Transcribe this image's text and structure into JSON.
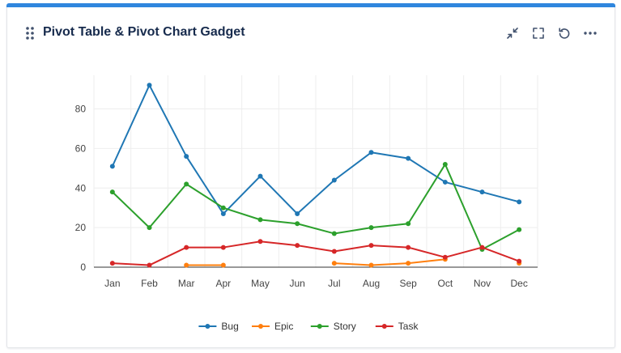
{
  "gadget": {
    "title": "Pivot Table & Pivot Chart Gadget",
    "actions": [
      {
        "name": "minimize-icon"
      },
      {
        "name": "expand-icon"
      },
      {
        "name": "refresh-icon"
      },
      {
        "name": "more-icon"
      }
    ]
  },
  "colors": {
    "accent": "#2f86de",
    "Bug": "#1f77b4",
    "Epic": "#ff7f0e",
    "Story": "#2ca02c",
    "Task": "#d62728"
  },
  "chart_data": {
    "type": "line",
    "title": "",
    "xlabel": "",
    "ylabel": "",
    "categories": [
      "Jan",
      "Feb",
      "Mar",
      "Apr",
      "May",
      "Jun",
      "Jul",
      "Aug",
      "Sep",
      "Oct",
      "Nov",
      "Dec"
    ],
    "ylim": [
      0,
      97
    ],
    "yticks": [
      0,
      20,
      40,
      60,
      80
    ],
    "grid": true,
    "legend": "bottom-center",
    "series": [
      {
        "name": "Bug",
        "values": [
          51,
          92,
          56,
          27,
          46,
          27,
          44,
          58,
          55,
          43,
          38,
          33
        ]
      },
      {
        "name": "Epic",
        "values": [
          null,
          null,
          1,
          1,
          null,
          null,
          2,
          1,
          2,
          4,
          null,
          2
        ]
      },
      {
        "name": "Story",
        "values": [
          38,
          20,
          42,
          30,
          24,
          22,
          17,
          20,
          22,
          52,
          9,
          19
        ]
      },
      {
        "name": "Task",
        "values": [
          2,
          1,
          10,
          10,
          13,
          11,
          8,
          11,
          10,
          5,
          10,
          3
        ]
      }
    ]
  }
}
